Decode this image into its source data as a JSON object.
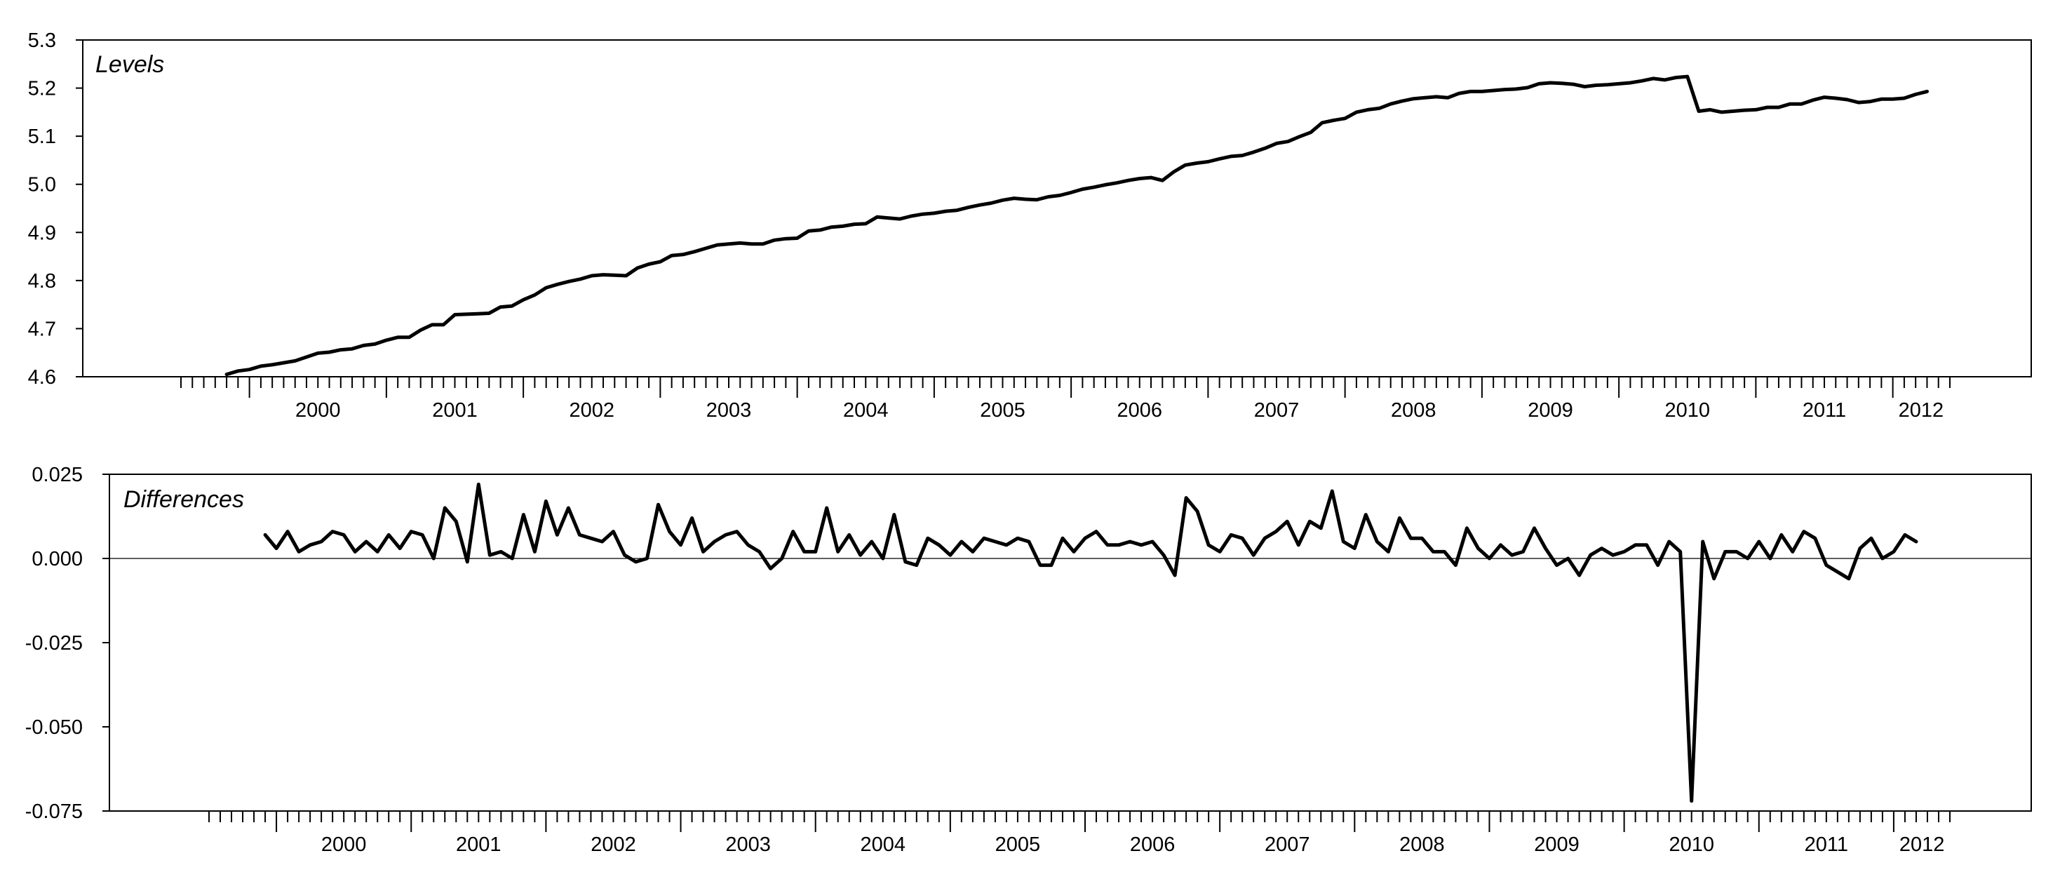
{
  "chart_data": [
    {
      "type": "line",
      "title": "Levels",
      "xlabel": "",
      "ylabel": "",
      "x_ticks": [
        "2000",
        "2001",
        "2002",
        "2003",
        "2004",
        "2005",
        "2006",
        "2007",
        "2008",
        "2009",
        "2010",
        "2011",
        "2012"
      ],
      "xlim": [
        "1999-07",
        "2012-06"
      ],
      "ylim": [
        4.6,
        5.3
      ],
      "y_ticks": [
        "4.6",
        "4.7",
        "4.8",
        "4.9",
        "5.0",
        "5.1",
        "5.2",
        "5.3"
      ],
      "grid": false,
      "legend": "none",
      "series": [
        {
          "color": "#000000",
          "start": "1999-11",
          "frequency": "monthly",
          "values": [
            4.605,
            4.612,
            4.615,
            4.622,
            4.625,
            4.629,
            4.633,
            4.641,
            4.649,
            4.651,
            4.656,
            4.658,
            4.665,
            4.668,
            4.676,
            4.682,
            4.682,
            4.697,
            4.708,
            4.708,
            4.729,
            4.73,
            4.731,
            4.732,
            4.745,
            4.747,
            4.76,
            4.77,
            4.785,
            4.792,
            4.798,
            4.803,
            4.81,
            4.812,
            4.811,
            4.81,
            4.826,
            4.834,
            4.839,
            4.852,
            4.854,
            4.86,
            4.867,
            4.874,
            4.876,
            4.878,
            4.876,
            4.876,
            4.884,
            4.887,
            4.888,
            4.903,
            4.905,
            4.911,
            4.913,
            4.917,
            4.918,
            4.932,
            4.93,
            4.928,
            4.934,
            4.938,
            4.94,
            4.944,
            4.946,
            4.952,
            4.957,
            4.961,
            4.967,
            4.971,
            4.969,
            4.968,
            4.974,
            4.977,
            4.983,
            4.99,
            4.994,
            4.999,
            5.003,
            5.008,
            5.012,
            5.014,
            5.008,
            5.026,
            5.04,
            5.044,
            5.047,
            5.053,
            5.058,
            5.06,
            5.067,
            5.075,
            5.085,
            5.089,
            5.099,
            5.108,
            5.128,
            5.133,
            5.137,
            5.15,
            5.155,
            5.158,
            5.167,
            5.173,
            5.178,
            5.18,
            5.182,
            5.18,
            5.189,
            5.193,
            5.193,
            5.195,
            5.197,
            5.198,
            5.201,
            5.209,
            5.211,
            5.21,
            5.208,
            5.203,
            5.206,
            5.207,
            5.209,
            5.211,
            5.215,
            5.22,
            5.217,
            5.222,
            5.224,
            5.152,
            5.155,
            5.15,
            5.152,
            5.154,
            5.155,
            5.16,
            5.16,
            5.167,
            5.167,
            5.175,
            5.181,
            5.179,
            5.176,
            5.17,
            5.172,
            5.177,
            5.177,
            5.179,
            5.187,
            5.193
          ]
        }
      ]
    },
    {
      "type": "line",
      "title": "Differences",
      "xlabel": "",
      "ylabel": "",
      "x_ticks": [
        "2000",
        "2001",
        "2002",
        "2003",
        "2004",
        "2005",
        "2006",
        "2007",
        "2008",
        "2009",
        "2010",
        "2011",
        "2012"
      ],
      "xlim": [
        "1999-07",
        "2012-06"
      ],
      "ylim": [
        -0.075,
        0.025
      ],
      "y_ticks": [
        "0.025",
        "0.000",
        "-0.025",
        "-0.050",
        "-0.075"
      ],
      "zero_line": true,
      "grid": false,
      "legend": "none",
      "series": [
        {
          "color": "#000000",
          "start": "1999-12",
          "frequency": "monthly",
          "values": [
            0.007,
            0.003,
            0.008,
            0.002,
            0.004,
            0.005,
            0.008,
            0.007,
            0.002,
            0.005,
            0.002,
            0.007,
            0.003,
            0.008,
            0.007,
            0.0,
            0.015,
            0.011,
            -0.001,
            0.022,
            0.001,
            0.002,
            0.0,
            0.013,
            0.002,
            0.017,
            0.007,
            0.015,
            0.007,
            0.006,
            0.005,
            0.008,
            0.001,
            -0.001,
            0.0,
            0.016,
            0.008,
            0.004,
            0.012,
            0.002,
            0.005,
            0.007,
            0.008,
            0.004,
            0.002,
            -0.003,
            0.0,
            0.008,
            0.002,
            0.002,
            0.015,
            0.002,
            0.007,
            0.001,
            0.005,
            0.0,
            0.013,
            -0.001,
            -0.002,
            0.006,
            0.004,
            0.001,
            0.005,
            0.002,
            0.006,
            0.005,
            0.004,
            0.006,
            0.005,
            -0.002,
            -0.002,
            0.006,
            0.002,
            0.006,
            0.008,
            0.004,
            0.004,
            0.005,
            0.004,
            0.005,
            0.001,
            -0.005,
            0.018,
            0.014,
            0.004,
            0.002,
            0.007,
            0.006,
            0.001,
            0.006,
            0.008,
            0.011,
            0.004,
            0.011,
            0.009,
            0.02,
            0.005,
            0.003,
            0.013,
            0.005,
            0.002,
            0.012,
            0.006,
            0.006,
            0.002,
            0.002,
            -0.002,
            0.009,
            0.003,
            0.0,
            0.004,
            0.001,
            0.002,
            0.009,
            0.003,
            -0.002,
            0.0,
            -0.005,
            0.001,
            0.003,
            0.001,
            0.002,
            0.004,
            0.004,
            -0.002,
            0.005,
            0.002,
            -0.072,
            0.005,
            -0.006,
            0.002,
            0.002,
            0.0,
            0.005,
            0.0,
            0.007,
            0.002,
            0.008,
            0.006,
            -0.002,
            -0.004,
            -0.006,
            0.003,
            0.006,
            0.0,
            0.002,
            0.007,
            0.005
          ]
        }
      ]
    }
  ]
}
